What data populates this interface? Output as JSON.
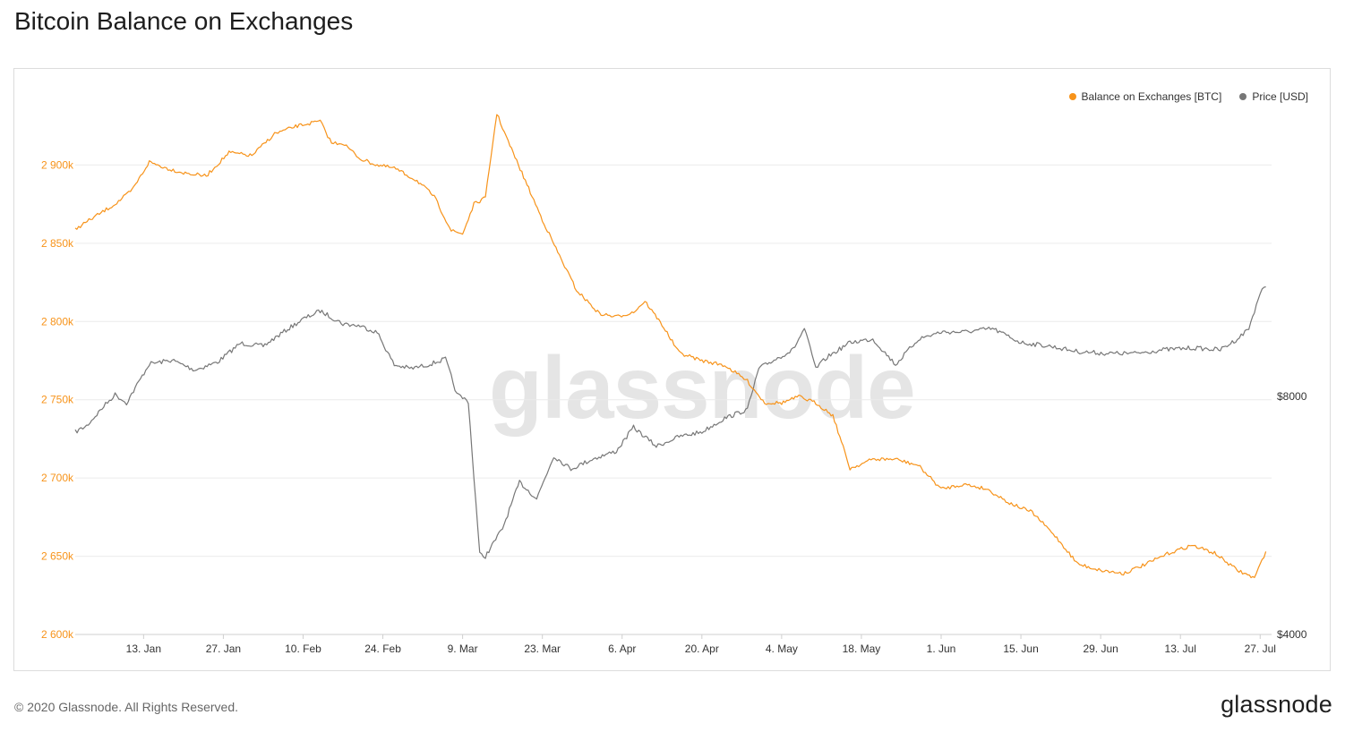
{
  "page": {
    "title": "Bitcoin Balance on Exchanges",
    "copyright": "© 2020 Glassnode. All Rights Reserved.",
    "logo_text": "glassnode",
    "watermark_text": "glassnode"
  },
  "legend": [
    {
      "label": "Balance on Exchanges [BTC]",
      "color": "#f7931a"
    },
    {
      "label": "Price [USD]",
      "color": "#777777"
    }
  ],
  "chart_data": {
    "type": "line",
    "title": "Bitcoin Balance on Exchanges",
    "x_ticks": [
      "13. Jan",
      "27. Jan",
      "10. Feb",
      "24. Feb",
      "9. Mar",
      "23. Mar",
      "6. Apr",
      "20. Apr",
      "4. May",
      "18. May",
      "1. Jun",
      "15. Jun",
      "29. Jun",
      "13. Jul",
      "27. Jul"
    ],
    "y_left": {
      "ticks": [
        "2 600k",
        "2 650k",
        "2 700k",
        "2 750k",
        "2 800k",
        "2 850k",
        "2 900k"
      ],
      "range": [
        2600000,
        2950000
      ],
      "color": "#f7931a"
    },
    "y_right": {
      "ticks": [
        "$4000",
        "$8000"
      ],
      "scale": "log",
      "color": "#555555"
    },
    "grid": true,
    "legend_position": "top-right",
    "series": [
      {
        "name": "Balance on Exchanges [BTC]",
        "axis": "left",
        "color": "#f7931a",
        "x": [
          "2020-01-01",
          "2020-01-04",
          "2020-01-08",
          "2020-01-11",
          "2020-01-14",
          "2020-01-17",
          "2020-01-20",
          "2020-01-24",
          "2020-01-28",
          "2020-02-01",
          "2020-02-05",
          "2020-02-09",
          "2020-02-13",
          "2020-02-15",
          "2020-02-17",
          "2020-02-20",
          "2020-02-23",
          "2020-02-26",
          "2020-03-01",
          "2020-03-04",
          "2020-03-07",
          "2020-03-09",
          "2020-03-11",
          "2020-03-13",
          "2020-03-15",
          "2020-03-17",
          "2020-03-20",
          "2020-03-23",
          "2020-03-26",
          "2020-03-29",
          "2020-04-02",
          "2020-04-05",
          "2020-04-08",
          "2020-04-10",
          "2020-04-13",
          "2020-04-16",
          "2020-04-20",
          "2020-04-24",
          "2020-04-28",
          "2020-05-01",
          "2020-05-04",
          "2020-05-07",
          "2020-05-10",
          "2020-05-13",
          "2020-05-16",
          "2020-05-20",
          "2020-05-24",
          "2020-05-28",
          "2020-06-01",
          "2020-06-05",
          "2020-06-09",
          "2020-06-13",
          "2020-06-17",
          "2020-06-21",
          "2020-06-25",
          "2020-06-29",
          "2020-07-03",
          "2020-07-07",
          "2020-07-11",
          "2020-07-15",
          "2020-07-19",
          "2020-07-23",
          "2020-07-26",
          "2020-07-28"
        ],
        "y": [
          2859000,
          2866000,
          2875000,
          2884000,
          2902000,
          2898000,
          2895000,
          2893000,
          2908000,
          2906000,
          2920000,
          2925000,
          2928000,
          2914000,
          2914000,
          2904000,
          2900000,
          2898000,
          2890000,
          2880000,
          2858000,
          2856000,
          2875000,
          2879000,
          2933000,
          2915000,
          2890000,
          2865000,
          2842000,
          2820000,
          2805000,
          2803000,
          2806000,
          2813000,
          2798000,
          2780000,
          2775000,
          2772000,
          2762000,
          2748000,
          2748000,
          2752000,
          2748000,
          2740000,
          2706000,
          2712000,
          2712000,
          2708000,
          2693000,
          2696000,
          2693000,
          2684000,
          2678000,
          2663000,
          2645000,
          2641000,
          2639000,
          2645000,
          2652000,
          2657000,
          2652000,
          2641000,
          2636000,
          2653000
        ]
      },
      {
        "name": "Price [USD]",
        "axis": "right",
        "color": "#777777",
        "x": [
          "2020-01-01",
          "2020-01-03",
          "2020-01-06",
          "2020-01-08",
          "2020-01-10",
          "2020-01-14",
          "2020-01-18",
          "2020-01-22",
          "2020-01-26",
          "2020-01-30",
          "2020-02-03",
          "2020-02-07",
          "2020-02-10",
          "2020-02-13",
          "2020-02-17",
          "2020-02-20",
          "2020-02-23",
          "2020-02-26",
          "2020-02-29",
          "2020-03-03",
          "2020-03-06",
          "2020-03-08",
          "2020-03-10",
          "2020-03-12",
          "2020-03-13",
          "2020-03-16",
          "2020-03-19",
          "2020-03-22",
          "2020-03-25",
          "2020-03-28",
          "2020-04-01",
          "2020-04-05",
          "2020-04-08",
          "2020-04-12",
          "2020-04-16",
          "2020-04-20",
          "2020-04-24",
          "2020-04-28",
          "2020-04-30",
          "2020-05-03",
          "2020-05-06",
          "2020-05-08",
          "2020-05-10",
          "2020-05-12",
          "2020-05-16",
          "2020-05-20",
          "2020-05-24",
          "2020-05-28",
          "2020-06-01",
          "2020-06-05",
          "2020-06-10",
          "2020-06-15",
          "2020-06-20",
          "2020-06-25",
          "2020-06-30",
          "2020-07-05",
          "2020-07-10",
          "2020-07-15",
          "2020-07-20",
          "2020-07-23",
          "2020-07-25",
          "2020-07-27",
          "2020-07-28"
        ],
        "y": [
          7200,
          7330,
          7770,
          8050,
          7850,
          8820,
          8920,
          8660,
          8870,
          9380,
          9300,
          9750,
          10080,
          10330,
          9940,
          9880,
          9690,
          8790,
          8700,
          8800,
          8950,
          8050,
          7890,
          5000,
          4970,
          5400,
          6200,
          5900,
          6700,
          6450,
          6650,
          6800,
          7300,
          6900,
          7100,
          7200,
          7500,
          7700,
          8700,
          8950,
          9200,
          9800,
          8700,
          9000,
          9400,
          9500,
          8800,
          9500,
          9700,
          9700,
          9800,
          9400,
          9300,
          9150,
          9100,
          9100,
          9200,
          9250,
          9200,
          9500,
          9800,
          10900,
          11100
        ]
      }
    ]
  }
}
